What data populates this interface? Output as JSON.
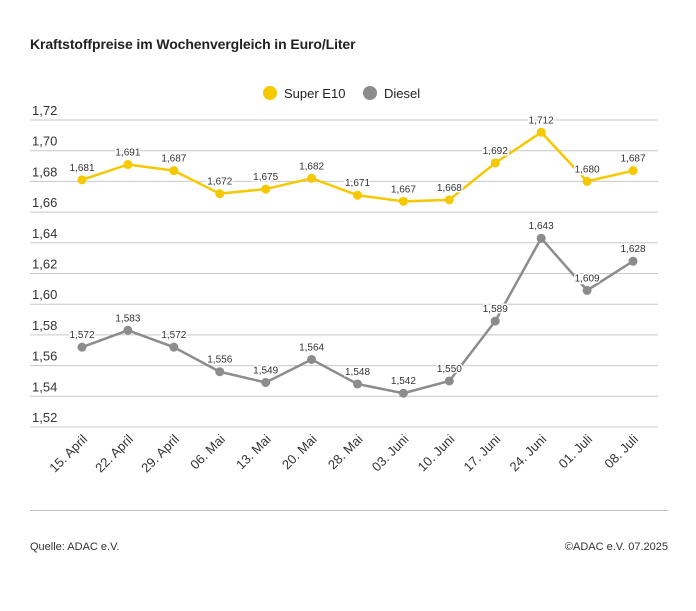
{
  "chart_data": {
    "type": "line",
    "title": "Kraftstoffpreise im Wochenvergleich in Euro/Liter",
    "categories": [
      "15. April",
      "22. April",
      "29. April",
      "06. Mai",
      "13. Mai",
      "20. Mai",
      "28. Mai",
      "03. Juni",
      "10. Juni",
      "17. Juni",
      "24. Juni",
      "01. Juli",
      "08. Juli"
    ],
    "series": [
      {
        "name": "Super E10",
        "color": "#f5c800",
        "values": [
          1.681,
          1.691,
          1.687,
          1.672,
          1.675,
          1.682,
          1.671,
          1.667,
          1.668,
          1.692,
          1.712,
          1.68,
          1.687
        ],
        "labels": [
          "1,681",
          "1,691",
          "1,687",
          "1,672",
          "1,675",
          "1,682",
          "1,671",
          "1,667",
          "1,668",
          "1,692",
          "1,712",
          "1,680",
          "1,687"
        ]
      },
      {
        "name": "Diesel",
        "color": "#8c8c8c",
        "values": [
          1.572,
          1.583,
          1.572,
          1.556,
          1.549,
          1.564,
          1.548,
          1.542,
          1.55,
          1.589,
          1.643,
          1.609,
          1.628
        ],
        "labels": [
          "1,572",
          "1,583",
          "1,572",
          "1,556",
          "1,549",
          "1,564",
          "1,548",
          "1,542",
          "1,550",
          "1,589",
          "1,643",
          "1,609",
          "1,628"
        ]
      }
    ],
    "ylim": [
      1.52,
      1.72
    ],
    "yticks": [
      1.52,
      1.54,
      1.56,
      1.58,
      1.6,
      1.62,
      1.64,
      1.66,
      1.68,
      1.7,
      1.72
    ],
    "ytick_labels": [
      "1,52",
      "1,54",
      "1,56",
      "1,58",
      "1,60",
      "1,62",
      "1,64",
      "1,66",
      "1,68",
      "1,70",
      "1,72"
    ],
    "grid": true,
    "legend": "top-center"
  },
  "footer": {
    "source": "Quelle: ADAC e.V.",
    "copyright": "©ADAC e.V. 07.2025"
  }
}
